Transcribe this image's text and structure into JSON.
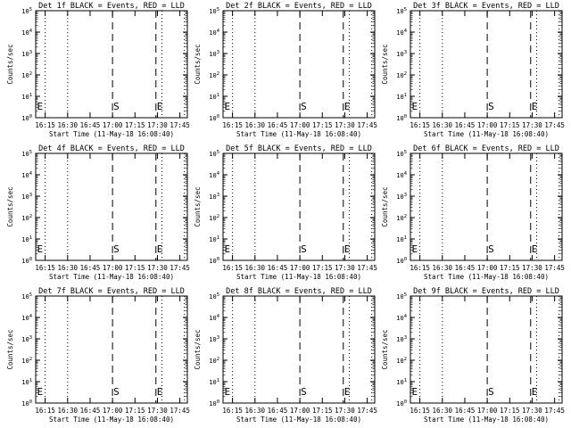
{
  "chart_data": [
    {
      "type": "line",
      "title": "Det 1f BLACK = Events, RED = LLD",
      "xlabel": "Start Time (11-May-18 16:08:40)",
      "ylabel": "Counts/sec",
      "xticks": [
        "16:15",
        "16:30",
        "16:45",
        "17:00",
        "17:15",
        "17:30",
        "17:45"
      ],
      "yticks": [
        "10^0",
        "10^1",
        "10^2",
        "10^3",
        "10^4",
        "10^5"
      ],
      "ylim": [
        1,
        100000
      ],
      "xlim": [
        "16:08:40",
        "17:50:00"
      ],
      "series": [],
      "dotted_lines": [
        "16:15",
        "16:30",
        "17:33",
        "17:48"
      ],
      "dashed_lines": [
        "17:00",
        "17:29"
      ],
      "markers": [
        {
          "label": "E",
          "x": "16:09"
        },
        {
          "label": "S",
          "x": "17:00"
        },
        {
          "label": "E",
          "x": "17:29"
        }
      ]
    },
    {
      "type": "line",
      "title": "Det 2f BLACK = Events, RED = LLD",
      "xlabel": "Start Time (11-May-18 16:08:40)",
      "ylabel": "Counts/sec",
      "xticks": [
        "16:15",
        "16:30",
        "16:45",
        "17:00",
        "17:15",
        "17:30",
        "17:45"
      ],
      "yticks": [
        "10^0",
        "10^1",
        "10^2",
        "10^3",
        "10^4",
        "10^5"
      ],
      "ylim": [
        1,
        100000
      ],
      "xlim": [
        "16:08:40",
        "17:50:00"
      ],
      "series": [],
      "dotted_lines": [
        "16:15",
        "16:30",
        "17:33",
        "17:48"
      ],
      "dashed_lines": [
        "17:00",
        "17:29"
      ],
      "markers": [
        {
          "label": "E",
          "x": "16:09"
        },
        {
          "label": "S",
          "x": "17:00"
        },
        {
          "label": "E",
          "x": "17:29"
        }
      ]
    },
    {
      "type": "line",
      "title": "Det 3f BLACK = Events, RED = LLD",
      "xlabel": "Start Time (11-May-18 16:08:40)",
      "ylabel": "Counts/sec",
      "xticks": [
        "16:15",
        "16:30",
        "16:45",
        "17:00",
        "17:15",
        "17:30",
        "17:45"
      ],
      "yticks": [
        "10^0",
        "10^1",
        "10^2",
        "10^3",
        "10^4",
        "10^5"
      ],
      "ylim": [
        1,
        100000
      ],
      "xlim": [
        "16:08:40",
        "17:50:00"
      ],
      "series": [],
      "dotted_lines": [
        "16:15",
        "16:30",
        "17:33",
        "17:48"
      ],
      "dashed_lines": [
        "17:00",
        "17:29"
      ],
      "markers": [
        {
          "label": "E",
          "x": "16:09"
        },
        {
          "label": "S",
          "x": "17:00"
        },
        {
          "label": "E",
          "x": "17:29"
        }
      ]
    },
    {
      "type": "line",
      "title": "Det 4f BLACK = Events, RED = LLD",
      "xlabel": "Start Time (11-May-18 16:08:40)",
      "ylabel": "Counts/sec",
      "xticks": [
        "16:15",
        "16:30",
        "16:45",
        "17:00",
        "17:15",
        "17:30",
        "17:45"
      ],
      "yticks": [
        "10^0",
        "10^1",
        "10^2",
        "10^3",
        "10^4",
        "10^5"
      ],
      "ylim": [
        1,
        100000
      ],
      "xlim": [
        "16:08:40",
        "17:50:00"
      ],
      "series": [],
      "dotted_lines": [
        "16:15",
        "16:30",
        "17:33",
        "17:48"
      ],
      "dashed_lines": [
        "17:00",
        "17:29"
      ],
      "markers": [
        {
          "label": "E",
          "x": "16:09"
        },
        {
          "label": "S",
          "x": "17:00"
        },
        {
          "label": "E",
          "x": "17:29"
        }
      ]
    },
    {
      "type": "line",
      "title": "Det 5f BLACK = Events, RED = LLD",
      "xlabel": "Start Time (11-May-18 16:08:40)",
      "ylabel": "Counts/sec",
      "xticks": [
        "16:15",
        "16:30",
        "16:45",
        "17:00",
        "17:15",
        "17:30",
        "17:45"
      ],
      "yticks": [
        "10^0",
        "10^1",
        "10^2",
        "10^3",
        "10^4",
        "10^5"
      ],
      "ylim": [
        1,
        100000
      ],
      "xlim": [
        "16:08:40",
        "17:50:00"
      ],
      "series": [],
      "dotted_lines": [
        "16:15",
        "16:30",
        "17:33",
        "17:48"
      ],
      "dashed_lines": [
        "17:00",
        "17:29"
      ],
      "markers": [
        {
          "label": "E",
          "x": "16:09"
        },
        {
          "label": "S",
          "x": "17:00"
        },
        {
          "label": "E",
          "x": "17:29"
        }
      ]
    },
    {
      "type": "line",
      "title": "Det 6f BLACK = Events, RED = LLD",
      "xlabel": "Start Time (11-May-18 16:08:40)",
      "ylabel": "Counts/sec",
      "xticks": [
        "16:15",
        "16:30",
        "16:45",
        "17:00",
        "17:15",
        "17:30",
        "17:45"
      ],
      "yticks": [
        "10^0",
        "10^1",
        "10^2",
        "10^3",
        "10^4",
        "10^5"
      ],
      "ylim": [
        1,
        100000
      ],
      "xlim": [
        "16:08:40",
        "17:50:00"
      ],
      "series": [],
      "dotted_lines": [
        "16:15",
        "16:30",
        "17:33",
        "17:48"
      ],
      "dashed_lines": [
        "17:00",
        "17:29"
      ],
      "markers": [
        {
          "label": "E",
          "x": "16:09"
        },
        {
          "label": "S",
          "x": "17:00"
        },
        {
          "label": "E",
          "x": "17:29"
        }
      ]
    },
    {
      "type": "line",
      "title": "Det 7f BLACK = Events, RED = LLD",
      "xlabel": "Start Time (11-May-18 16:08:40)",
      "ylabel": "Counts/sec",
      "xticks": [
        "16:15",
        "16:30",
        "16:45",
        "17:00",
        "17:15",
        "17:30",
        "17:45"
      ],
      "yticks": [
        "10^0",
        "10^1",
        "10^2",
        "10^3",
        "10^4",
        "10^5"
      ],
      "ylim": [
        1,
        100000
      ],
      "xlim": [
        "16:08:40",
        "17:50:00"
      ],
      "series": [],
      "dotted_lines": [
        "16:15",
        "16:30",
        "17:33",
        "17:48"
      ],
      "dashed_lines": [
        "17:00",
        "17:29"
      ],
      "markers": [
        {
          "label": "E",
          "x": "16:09"
        },
        {
          "label": "S",
          "x": "17:00"
        },
        {
          "label": "E",
          "x": "17:29"
        }
      ]
    },
    {
      "type": "line",
      "title": "Det 8f BLACK = Events, RED = LLD",
      "xlabel": "Start Time (11-May-18 16:08:40)",
      "ylabel": "Counts/sec",
      "xticks": [
        "16:15",
        "16:30",
        "16:45",
        "17:00",
        "17:15",
        "17:30",
        "17:45"
      ],
      "yticks": [
        "10^0",
        "10^1",
        "10^2",
        "10^3",
        "10^4",
        "10^5"
      ],
      "ylim": [
        1,
        100000
      ],
      "xlim": [
        "16:08:40",
        "17:50:00"
      ],
      "series": [],
      "dotted_lines": [
        "16:15",
        "16:30",
        "17:33",
        "17:48"
      ],
      "dashed_lines": [
        "17:00",
        "17:29"
      ],
      "markers": [
        {
          "label": "E",
          "x": "16:09"
        },
        {
          "label": "S",
          "x": "17:00"
        },
        {
          "label": "E",
          "x": "17:29"
        }
      ]
    },
    {
      "type": "line",
      "title": "Det 9f BLACK = Events, RED = LLD",
      "xlabel": "Start Time (11-May-18 16:08:40)",
      "ylabel": "Counts/sec",
      "xticks": [
        "16:15",
        "16:30",
        "16:45",
        "17:00",
        "17:15",
        "17:30",
        "17:45"
      ],
      "yticks": [
        "10^0",
        "10^1",
        "10^2",
        "10^3",
        "10^4",
        "10^5"
      ],
      "ylim": [
        1,
        100000
      ],
      "xlim": [
        "16:08:40",
        "17:50:00"
      ],
      "series": [],
      "dotted_lines": [
        "16:15",
        "16:30",
        "17:33",
        "17:48"
      ],
      "dashed_lines": [
        "17:00",
        "17:29"
      ],
      "markers": [
        {
          "label": "E",
          "x": "16:09"
        },
        {
          "label": "S",
          "x": "17:00"
        },
        {
          "label": "E",
          "x": "17:29"
        }
      ]
    }
  ]
}
